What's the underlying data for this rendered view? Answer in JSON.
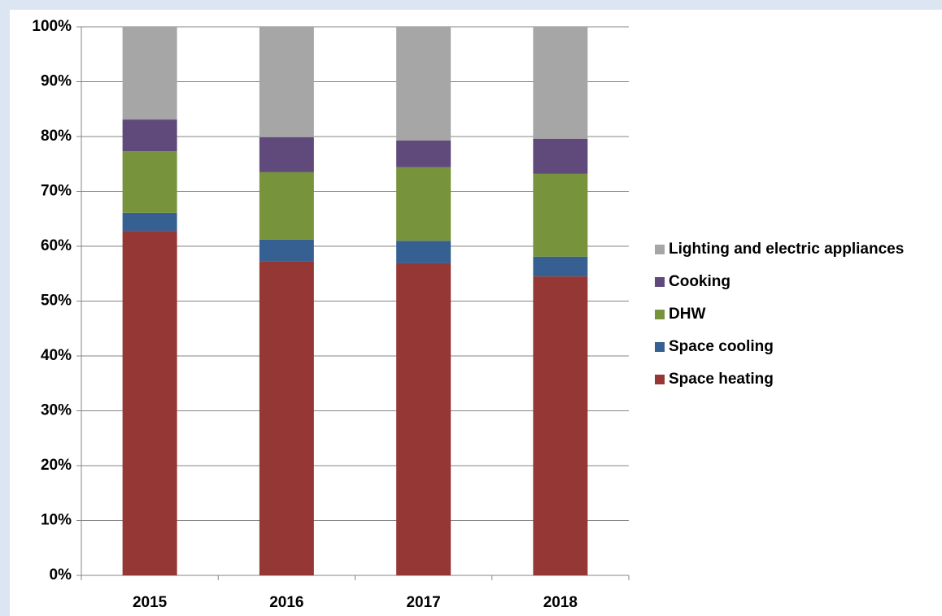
{
  "chart_data": {
    "type": "stacked_bar",
    "categories": [
      "2015",
      "2016",
      "2017",
      "2018"
    ],
    "series": [
      {
        "name": "Space heating",
        "color": "#953735",
        "values": [
          62.8,
          57.2,
          56.9,
          54.5
        ]
      },
      {
        "name": "Space cooling",
        "color": "#376092",
        "values": [
          3.3,
          4.0,
          4.1,
          3.6
        ]
      },
      {
        "name": "DHW",
        "color": "#77933c",
        "values": [
          11.2,
          12.3,
          13.4,
          15.1
        ]
      },
      {
        "name": "Cooking",
        "color": "#604a7b",
        "values": [
          5.8,
          6.4,
          4.9,
          6.4
        ]
      },
      {
        "name": "Lighting and electric appliances",
        "color": "#a6a6a6",
        "values": [
          16.9,
          20.1,
          20.7,
          20.4
        ]
      }
    ],
    "ylim": [
      0,
      100
    ],
    "yticks": [
      {
        "value": 0,
        "label": "0%"
      },
      {
        "value": 10,
        "label": "10%"
      },
      {
        "value": 20,
        "label": "20%"
      },
      {
        "value": 30,
        "label": "30%"
      },
      {
        "value": 40,
        "label": "40%"
      },
      {
        "value": 50,
        "label": "50%"
      },
      {
        "value": 60,
        "label": "60%"
      },
      {
        "value": 70,
        "label": "70%"
      },
      {
        "value": 80,
        "label": "80%"
      },
      {
        "value": 90,
        "label": "90%"
      },
      {
        "value": 100,
        "label": "100%"
      }
    ],
    "grid": true,
    "legend": "right"
  }
}
